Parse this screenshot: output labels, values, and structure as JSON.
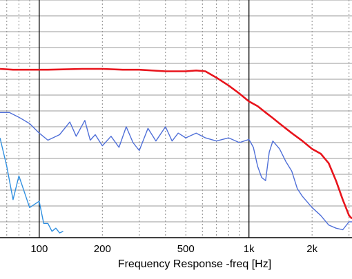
{
  "chart_data": {
    "type": "line",
    "title": "",
    "xlabel": "Frequency Response -freq [Hz]",
    "ylabel": "",
    "x_scale": "log",
    "xlim": [
      65,
      3100
    ],
    "ylim": [
      0,
      15
    ],
    "grid": true,
    "legend": "none",
    "x_ticks": [
      {
        "value": 100,
        "label": "100"
      },
      {
        "value": 200,
        "label": "200"
      },
      {
        "value": 500,
        "label": "500"
      },
      {
        "value": 1000,
        "label": "1k"
      },
      {
        "value": 2000,
        "label": "2k"
      }
    ],
    "series": [
      {
        "color": "#e8141c",
        "x": [
          65,
          75,
          90,
          110,
          130,
          160,
          200,
          250,
          300,
          400,
          500,
          560,
          620,
          700,
          800,
          900,
          1000,
          1100,
          1200,
          1300,
          1400,
          1600,
          1800,
          2000,
          2200,
          2400,
          2600,
          2800,
          3000,
          3100
        ],
        "y": [
          10.65,
          10.6,
          10.6,
          10.6,
          10.62,
          10.65,
          10.65,
          10.6,
          10.6,
          10.5,
          10.5,
          10.55,
          10.5,
          10.1,
          9.6,
          9.1,
          8.6,
          8.3,
          7.9,
          7.55,
          7.2,
          6.6,
          6.1,
          5.6,
          5.3,
          4.7,
          3.6,
          2.4,
          1.4,
          1.2
        ]
      },
      {
        "color": "#4f6fd8",
        "x": [
          65,
          72,
          80,
          90,
          100,
          110,
          125,
          140,
          150,
          165,
          175,
          185,
          200,
          220,
          240,
          260,
          280,
          300,
          330,
          360,
          400,
          430,
          460,
          500,
          560,
          620,
          700,
          800,
          900,
          1000,
          1050,
          1100,
          1150,
          1200,
          1250,
          1300,
          1400,
          1500,
          1600,
          1700,
          1800,
          2000,
          2200,
          2400,
          2600,
          2800,
          3000,
          3100
        ],
        "y": [
          7.9,
          7.9,
          7.6,
          7.2,
          6.6,
          6.15,
          6.5,
          7.3,
          6.4,
          7.4,
          6.15,
          6.5,
          5.8,
          6.4,
          5.7,
          7.0,
          6.0,
          5.5,
          6.9,
          6.1,
          7.0,
          6.1,
          6.6,
          6.3,
          6.6,
          6.3,
          6.1,
          6.3,
          6.0,
          6.2,
          5.7,
          4.5,
          3.8,
          3.6,
          5.4,
          6.1,
          5.6,
          4.8,
          4.2,
          3.1,
          2.6,
          1.9,
          1.4,
          0.8,
          0.6,
          0.5,
          1.0,
          1.0
        ]
      },
      {
        "color": "#2f8fe0",
        "x": [
          65,
          70,
          75,
          80,
          90,
          100,
          105,
          110,
          115,
          120,
          125,
          130
        ],
        "y": [
          6.3,
          4.5,
          2.4,
          3.9,
          1.9,
          2.3,
          0.9,
          0.9,
          0.4,
          0.6,
          0.3,
          0.4
        ]
      }
    ]
  }
}
